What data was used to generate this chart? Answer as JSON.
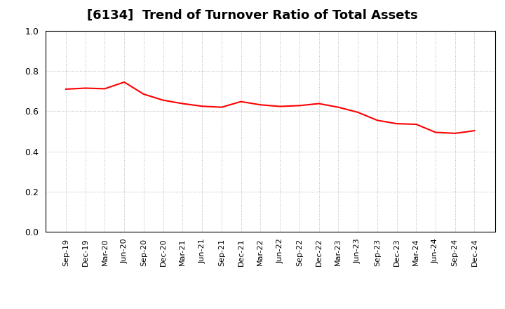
{
  "title": "[6134]  Trend of Turnover Ratio of Total Assets",
  "line_color": "#FF0000",
  "line_width": 1.5,
  "background_color": "#FFFFFF",
  "grid_color": "#AAAAAA",
  "ylim": [
    0.0,
    1.0
  ],
  "yticks": [
    0.0,
    0.2,
    0.4,
    0.6,
    0.8,
    1.0
  ],
  "labels": [
    "Sep-19",
    "Dec-19",
    "Mar-20",
    "Jun-20",
    "Sep-20",
    "Dec-20",
    "Mar-21",
    "Jun-21",
    "Sep-21",
    "Dec-21",
    "Mar-22",
    "Jun-22",
    "Sep-22",
    "Dec-22",
    "Mar-23",
    "Jun-23",
    "Sep-23",
    "Dec-23",
    "Mar-24",
    "Jun-24",
    "Sep-24",
    "Dec-24"
  ],
  "values": [
    0.71,
    0.715,
    0.712,
    0.745,
    0.685,
    0.655,
    0.638,
    0.625,
    0.62,
    0.648,
    0.632,
    0.624,
    0.628,
    0.638,
    0.62,
    0.595,
    0.555,
    0.538,
    0.535,
    0.495,
    0.49,
    0.503
  ],
  "title_fontsize": 13,
  "tick_fontsize": 8,
  "ytick_fontsize": 9
}
